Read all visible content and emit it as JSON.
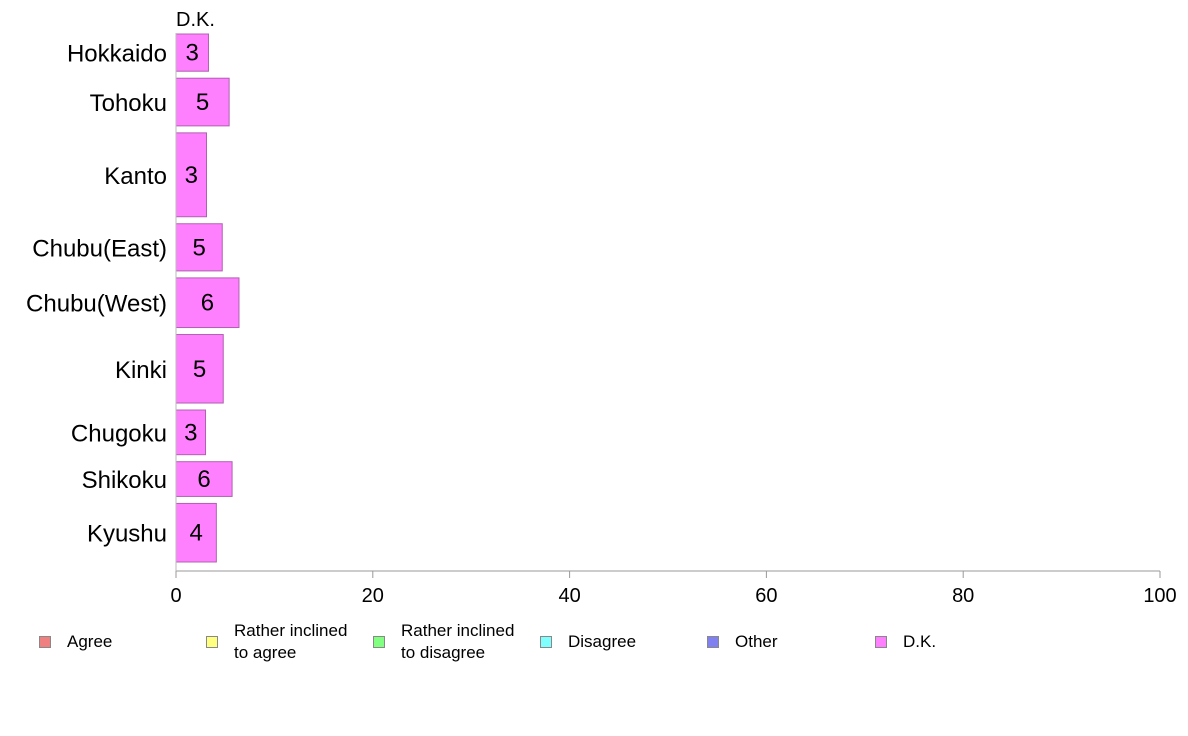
{
  "chart_data": {
    "type": "bar",
    "orientation": "horizontal",
    "stacked": true,
    "series_header": "D.K.",
    "categories": [
      "Hokkaido",
      "Tohoku",
      "Kanto",
      "Chubu(East)",
      "Chubu(West)",
      "Kinki",
      "Chugoku",
      "Shikoku",
      "Kyushu"
    ],
    "relative_bar_widths": [
      0.75,
      0.96,
      1.69,
      0.95,
      1.0,
      1.38,
      0.9,
      0.7,
      1.18
    ],
    "series": [
      {
        "name": "Agree",
        "color": "#f08080",
        "values": [
          0,
          0,
          0,
          0,
          0,
          0,
          0,
          0,
          0
        ]
      },
      {
        "name": "Rather inclined\nto agree",
        "color": "#ffff80",
        "values": [
          0,
          0,
          0,
          0,
          0,
          0,
          0,
          0,
          0
        ]
      },
      {
        "name": "Rather inclined\nto disagree",
        "color": "#80ff80",
        "values": [
          0,
          0,
          0,
          0,
          0,
          0,
          0,
          0,
          0
        ]
      },
      {
        "name": "Disagree",
        "color": "#80ffff",
        "values": [
          0,
          0,
          0,
          0,
          0,
          0,
          0,
          0,
          0
        ]
      },
      {
        "name": "Other",
        "color": "#8080f0",
        "values": [
          0,
          0,
          0,
          0,
          0,
          0,
          0,
          0,
          0
        ]
      },
      {
        "name": "D.K.",
        "color": "#ff80ff",
        "values": [
          3.3,
          5.4,
          3.1,
          4.7,
          6.4,
          4.8,
          3.0,
          5.7,
          4.1
        ]
      }
    ],
    "data_labels": [
      "3",
      "5",
      "3",
      "5",
      "6",
      "5",
      "3",
      "6",
      "4"
    ],
    "xlim": [
      0,
      100
    ],
    "xticks": [
      0,
      20,
      40,
      60,
      80,
      100
    ],
    "grid": false,
    "legend_position": "bottom"
  }
}
